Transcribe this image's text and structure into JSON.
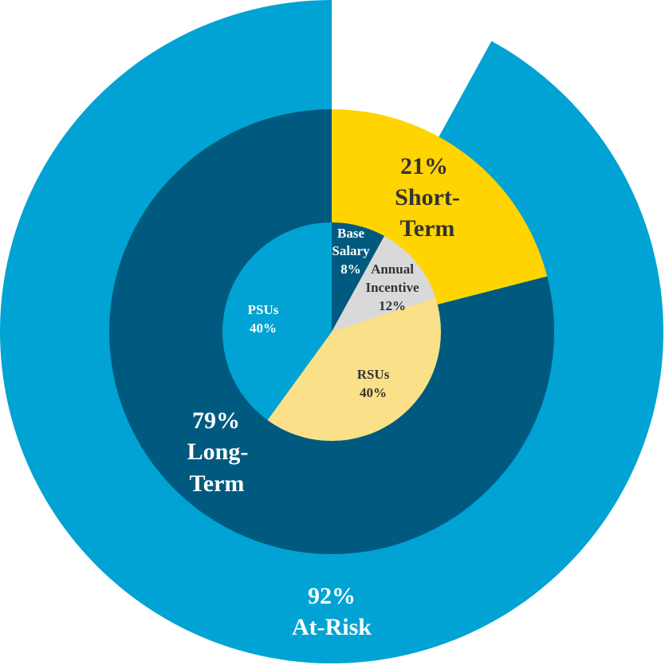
{
  "chart_data": {
    "type": "pie",
    "rings": [
      {
        "name": "outer",
        "slices": [
          {
            "label": "At-Risk",
            "value": 92,
            "display": "92%",
            "color": "#00a3d3"
          }
        ]
      },
      {
        "name": "middle",
        "slices": [
          {
            "label": "Short-Term",
            "value": 21,
            "display": "21%",
            "color": "#ffd400"
          },
          {
            "label": "Long-Term",
            "value": 79,
            "display": "79%",
            "color": "#005a80"
          }
        ]
      },
      {
        "name": "inner",
        "slices": [
          {
            "label": "Base Salary",
            "value": 8,
            "display": "8%",
            "color": "#005a80"
          },
          {
            "label": "Annual Incentive",
            "value": 12,
            "display": "12%",
            "color": "#d9d9d9"
          },
          {
            "label": "RSUs",
            "value": 40,
            "display": "40%",
            "color": "#fbe08a"
          },
          {
            "label": "PSUs",
            "value": 40,
            "display": "40%",
            "color": "#00a3d3"
          }
        ]
      }
    ]
  },
  "labels": {
    "outer_pct": "92%",
    "outer_name": "At-Risk",
    "short_pct": "21%",
    "short_name_1": "Short-",
    "short_name_2": "Term",
    "long_pct": "79%",
    "long_name_1": "Long-",
    "long_name_2": "Term",
    "base_1": "Base",
    "base_2": "Salary",
    "base_pct": "8%",
    "annual_1": "Annual",
    "annual_2": "Incentive",
    "annual_pct": "12%",
    "rsu_name": "RSUs",
    "rsu_pct": "40%",
    "psu_name": "PSUs",
    "psu_pct": "40%"
  }
}
